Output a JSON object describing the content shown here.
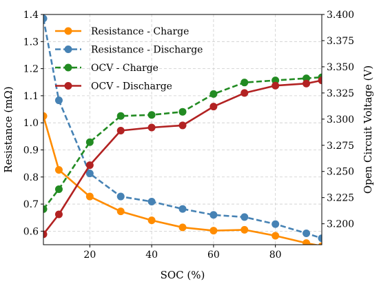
{
  "chart_data": {
    "type": "line",
    "xlabel": "SOC (%)",
    "ylabel_left": "Resistance (mΩ)",
    "ylabel_right": "Open Circuit Voltage (V)",
    "xlim": [
      5,
      95
    ],
    "ylim_left": [
      0.55,
      1.4
    ],
    "ylim_right": [
      3.18,
      3.4
    ],
    "x_ticks": [
      20,
      40,
      60,
      80
    ],
    "y_ticks_left": [
      "0.6",
      "0.7",
      "0.8",
      "0.9",
      "1.0",
      "1.1",
      "1.2",
      "1.3",
      "1.4"
    ],
    "y_ticks_right": [
      "3.200",
      "3.225",
      "3.250",
      "3.275",
      "3.300",
      "3.325",
      "3.350",
      "3.375",
      "3.400"
    ],
    "grid": true,
    "legend_position": "top-left",
    "series": [
      {
        "name": "Resistance - Charge",
        "axis": "left",
        "color": "#ff8c00",
        "line_style": "solid",
        "x": [
          5,
          10,
          20,
          30,
          40,
          50,
          60,
          70,
          80,
          90,
          95
        ],
        "values": [
          1.025,
          0.826,
          0.728,
          0.673,
          0.64,
          0.614,
          0.602,
          0.605,
          0.583,
          0.556,
          0.545
        ]
      },
      {
        "name": "Resistance - Discharge",
        "axis": "left",
        "color": "#4682b4",
        "line_style": "dashed",
        "x": [
          5,
          10,
          20,
          30,
          40,
          50,
          60,
          70,
          80,
          90,
          95
        ],
        "values": [
          1.385,
          1.083,
          0.813,
          0.728,
          0.709,
          0.682,
          0.66,
          0.652,
          0.626,
          0.592,
          0.574
        ]
      },
      {
        "name": "OCV - Charge",
        "axis": "right",
        "color": "#228b22",
        "line_style": "dashed",
        "x": [
          5,
          10,
          20,
          30,
          40,
          50,
          60,
          70,
          80,
          90,
          95
        ],
        "values": [
          3.214,
          3.233,
          3.278,
          3.303,
          3.304,
          3.307,
          3.324,
          3.335,
          3.337,
          3.339,
          3.34
        ]
      },
      {
        "name": "OCV - Discharge",
        "axis": "right",
        "color": "#b22222",
        "line_style": "solid",
        "x": [
          5,
          10,
          20,
          30,
          40,
          50,
          60,
          70,
          80,
          90,
          95
        ],
        "values": [
          3.19,
          3.209,
          3.256,
          3.289,
          3.292,
          3.294,
          3.312,
          3.325,
          3.332,
          3.334,
          3.337
        ]
      }
    ]
  }
}
